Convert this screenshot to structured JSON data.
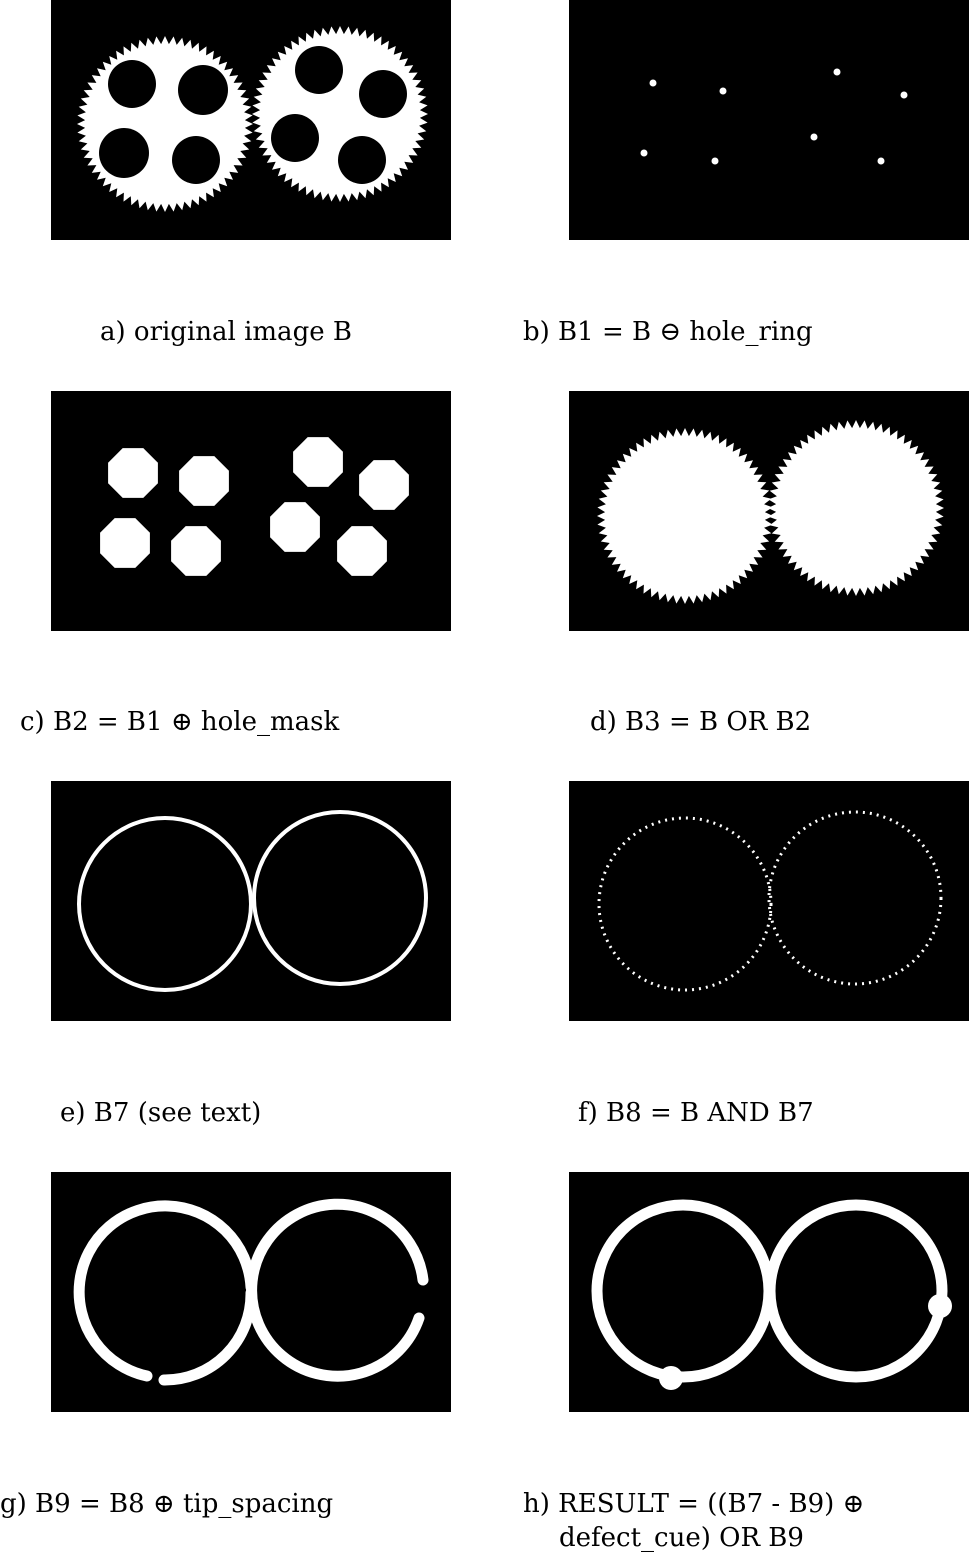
{
  "figure": {
    "captions": {
      "a": "a) original image B",
      "b": "b) B1 = B ⊖ hole_ring",
      "c": "c) B2 = B1 ⊕ hole_mask",
      "d": "d) B3 = B OR B2",
      "e": "e) B7 (see text)",
      "f": "f) B8 = B AND B7",
      "g": "g) B9 = B8 ⊕ tip_spacing",
      "h_line1": "h) RESULT = ((B7 - B9) ⊕",
      "h_line2": "defect_cue) OR B9"
    },
    "colors": {
      "background": "#000000",
      "foreground": "#ffffff"
    }
  }
}
